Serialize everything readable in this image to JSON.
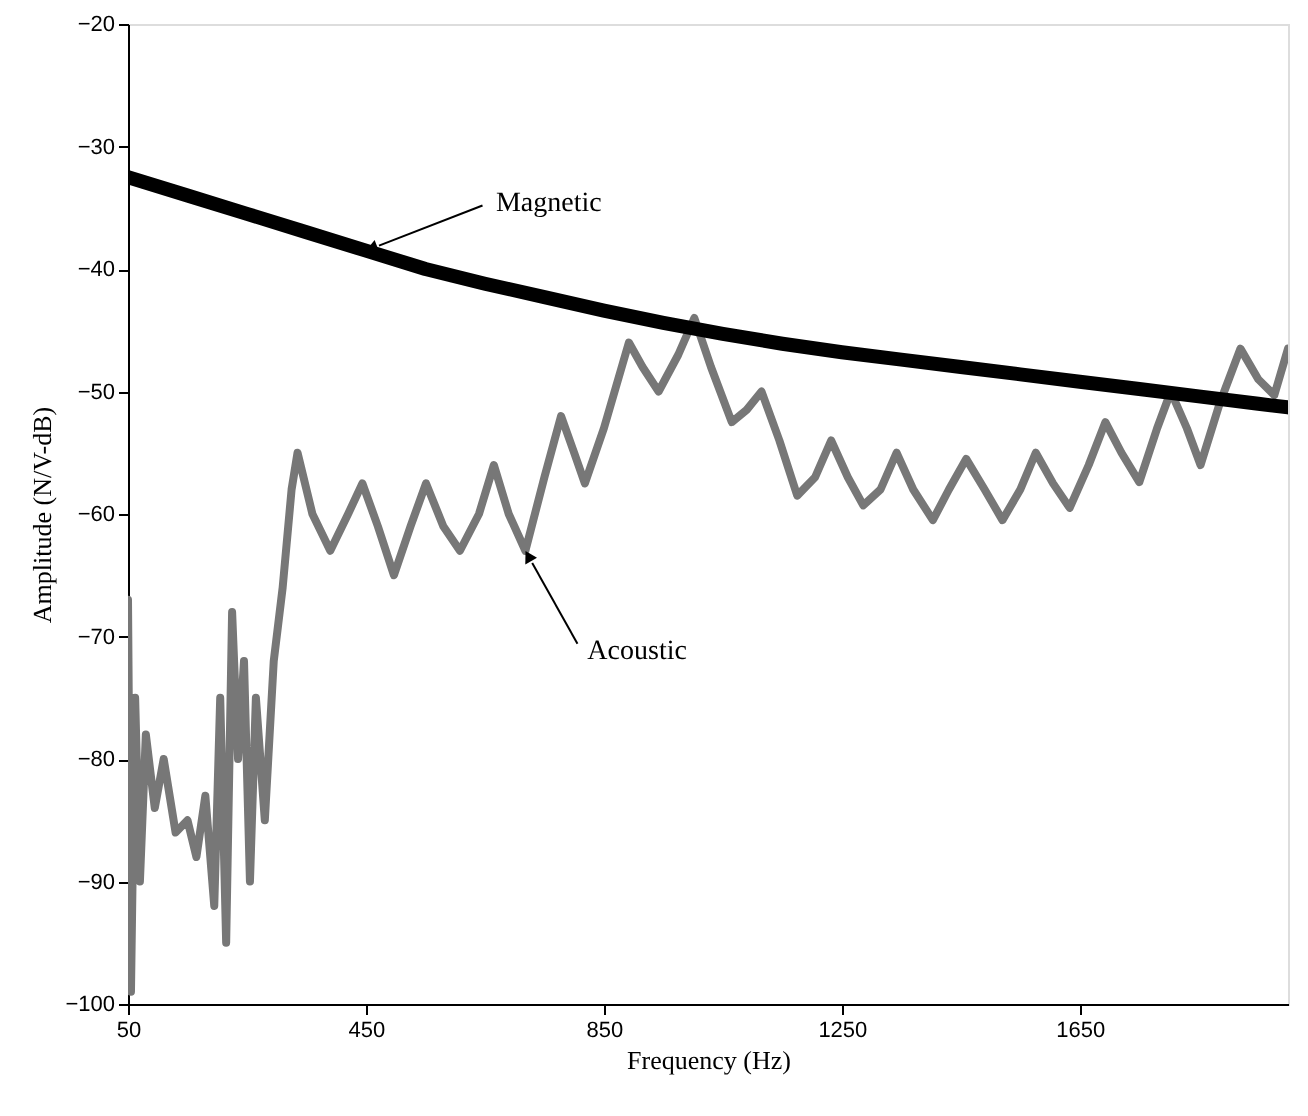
{
  "chart_data": {
    "type": "line",
    "xlabel": "Frequency (Hz)",
    "ylabel": "Amplitude (N/V-dB)",
    "xlim": [
      50,
      2000
    ],
    "xticks": [
      50,
      450,
      850,
      1250,
      1650
    ],
    "ylim": [
      -100,
      -20
    ],
    "yticks": [
      -100,
      -90,
      -80,
      -70,
      -60,
      -50,
      -40,
      -30,
      -20
    ],
    "grid": false,
    "marker": "none",
    "line_style": "solid",
    "series": [
      {
        "color": "#777777",
        "x": [
          50,
          55,
          62,
          70,
          80,
          95,
          110,
          130,
          150,
          165,
          180,
          195,
          205,
          215,
          225,
          235,
          245,
          255,
          265,
          280,
          295,
          310,
          325,
          335,
          360,
          390,
          420,
          444,
          470,
          497,
          525,
          551,
          580,
          608,
          640,
          665,
          690,
          718,
          750,
          778,
          800,
          818,
          850,
          892,
          915,
          942,
          975,
          1002,
          1030,
          1065,
          1090,
          1115,
          1145,
          1175,
          1205,
          1232,
          1260,
          1286,
          1315,
          1342,
          1370,
          1403,
          1430,
          1459,
          1490,
          1520,
          1550,
          1576,
          1605,
          1633,
          1665,
          1693,
          1720,
          1750,
          1780,
          1803,
          1830,
          1853,
          1885,
          1920,
          1950,
          1977,
          2000
        ],
        "values": [
          -67,
          -99,
          -75,
          -90,
          -78,
          -84,
          -80,
          -86,
          -85,
          -88,
          -83,
          -92,
          -75,
          -95,
          -68,
          -80,
          -72,
          -90,
          -75,
          -85,
          -72,
          -66,
          -58,
          -55,
          -60,
          -63,
          -60,
          -57.5,
          -61,
          -65,
          -61,
          -57.5,
          -61,
          -63,
          -60,
          -56,
          -60,
          -63,
          -57,
          -52,
          -55,
          -57.5,
          -53,
          -46,
          -48,
          -50,
          -47,
          -44,
          -48,
          -52.5,
          -51.5,
          -50,
          -54,
          -58.5,
          -57,
          -54,
          -57,
          -59.3,
          -58,
          -55,
          -58,
          -60.5,
          -58,
          -55.5,
          -58,
          -60.5,
          -58,
          -55,
          -57.5,
          -59.5,
          -56,
          -52.5,
          -55,
          -57.4,
          -53,
          -50,
          -53,
          -56,
          -51,
          -46.5,
          -49,
          -50.3,
          -46.5
        ]
      },
      {
        "color": "#000000",
        "x": [
          50,
          150,
          250,
          350,
          450,
          550,
          650,
          750,
          850,
          950,
          1050,
          1150,
          1250,
          1350,
          1450,
          1550,
          1650,
          1750,
          1850,
          1950,
          2000
        ],
        "values": [
          -32.5,
          -34,
          -35.5,
          -37,
          -38.5,
          -40,
          -41.2,
          -42.3,
          -43.4,
          -44.4,
          -45.3,
          -46.1,
          -46.8,
          -47.4,
          -48,
          -48.6,
          -49.2,
          -49.8,
          -50.4,
          -51,
          -51.3
        ]
      }
    ],
    "annotations": [
      {
        "text": "Magnetic",
        "x": 450,
        "y": -38.5
      },
      {
        "text": "Acoustic",
        "x": 718,
        "y": -63
      }
    ]
  }
}
